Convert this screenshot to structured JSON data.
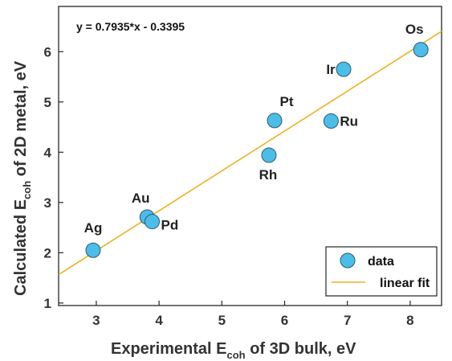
{
  "chart_data": {
    "type": "scatter",
    "title": "",
    "xlabel": {
      "prefix": "Experimental E",
      "sub": "coh",
      "suffix": " of 3D bulk, eV"
    },
    "ylabel": {
      "prefix": "Calculated E",
      "sub": "coh",
      "suffix": " of 2D metal, eV"
    },
    "xlim": [
      2.4,
      8.5
    ],
    "ylim": [
      0.95,
      6.9
    ],
    "xticks": [
      3,
      4,
      5,
      6,
      7,
      8
    ],
    "yticks": [
      1,
      2,
      3,
      4,
      5,
      6
    ],
    "grid": false,
    "equation": "y = 0.7935*x - 0.3395",
    "legend_position": "bottom-right",
    "series": [
      {
        "name": "data",
        "kind": "markers",
        "color": "#4BBDE8",
        "points": [
          {
            "label": "Ag",
            "x": 2.95,
            "y": 2.05
          },
          {
            "label": "Au",
            "x": 3.81,
            "y": 2.71
          },
          {
            "label": "Pd",
            "x": 3.89,
            "y": 2.62
          },
          {
            "label": "Rh",
            "x": 5.75,
            "y": 3.94
          },
          {
            "label": "Pt",
            "x": 5.84,
            "y": 4.63
          },
          {
            "label": "Ru",
            "x": 6.74,
            "y": 4.62
          },
          {
            "label": "Ir",
            "x": 6.94,
            "y": 5.65
          },
          {
            "label": "Os",
            "x": 8.17,
            "y": 6.04
          }
        ]
      },
      {
        "name": "linear fit",
        "kind": "line",
        "color": "#EDB120",
        "slope": 0.7935,
        "intercept": -0.3395
      }
    ]
  }
}
